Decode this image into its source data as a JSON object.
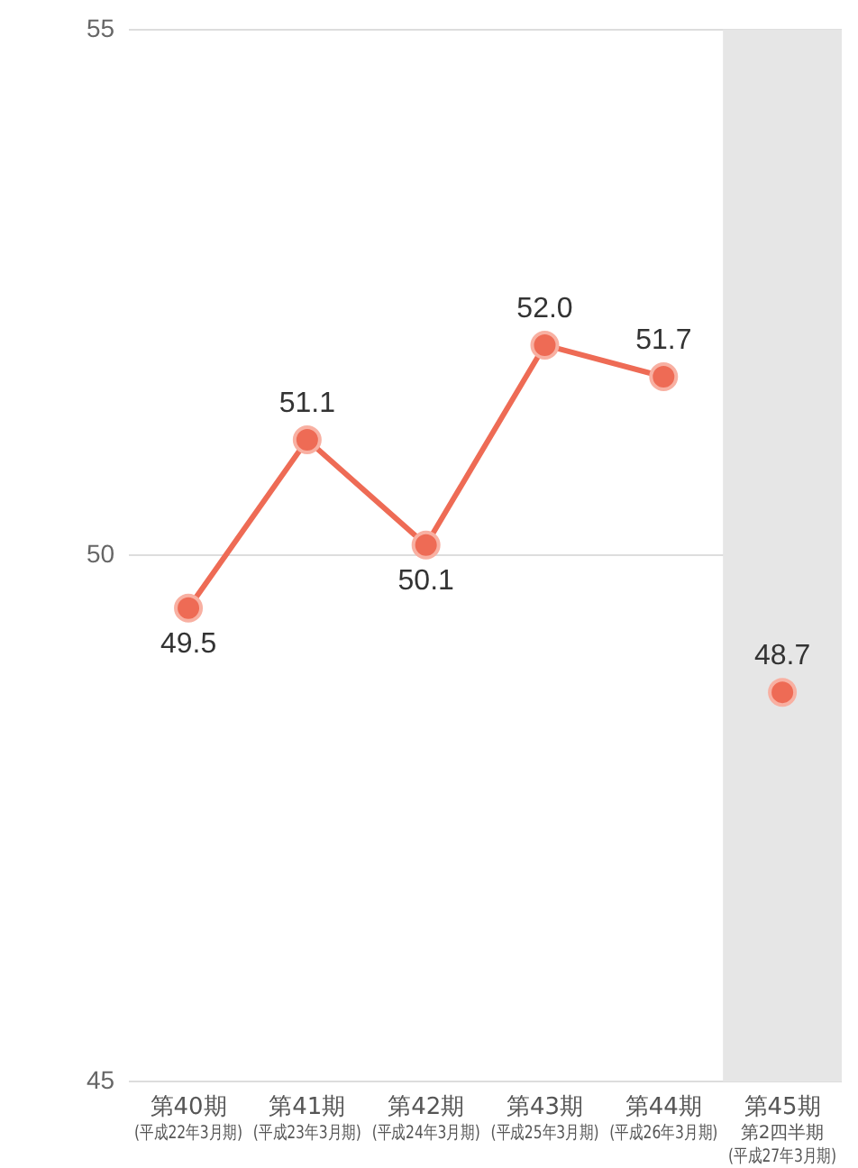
{
  "chart_data": {
    "type": "line",
    "categories": [
      "第40期(平成22年3月期)",
      "第41期(平成23年3月期)",
      "第42期(平成24年3月期)",
      "第43期(平成25年3月期)",
      "第44期(平成26年3月期)",
      "第45期第2四半期(平成27年3月期)"
    ],
    "series": [
      {
        "color": "#ee6b55",
        "values": [
          49.5,
          51.1,
          50.1,
          52.0,
          51.7,
          null
        ],
        "value_labels": [
          "49.5",
          "51.1",
          "50.1",
          "52.0",
          "51.7",
          null
        ]
      },
      {
        "type": "scatter",
        "color": "#ee6b55",
        "x": [
          "第45期第2四半期(平成27年3月期)"
        ],
        "values": [
          48.7
        ],
        "value_labels": [
          "48.7"
        ]
      }
    ],
    "ylim": [
      45,
      55
    ],
    "yticks": [
      45,
      50,
      55
    ],
    "grid": "y",
    "marker": "circle",
    "line_style": "solid",
    "legend": false,
    "bands": [
      {
        "axis": "x",
        "from": "第45期第2四半期(平成27年3月期)",
        "to": "第45期第2四半期(平成27年3月期)",
        "color": "#e6e6e6"
      }
    ]
  }
}
